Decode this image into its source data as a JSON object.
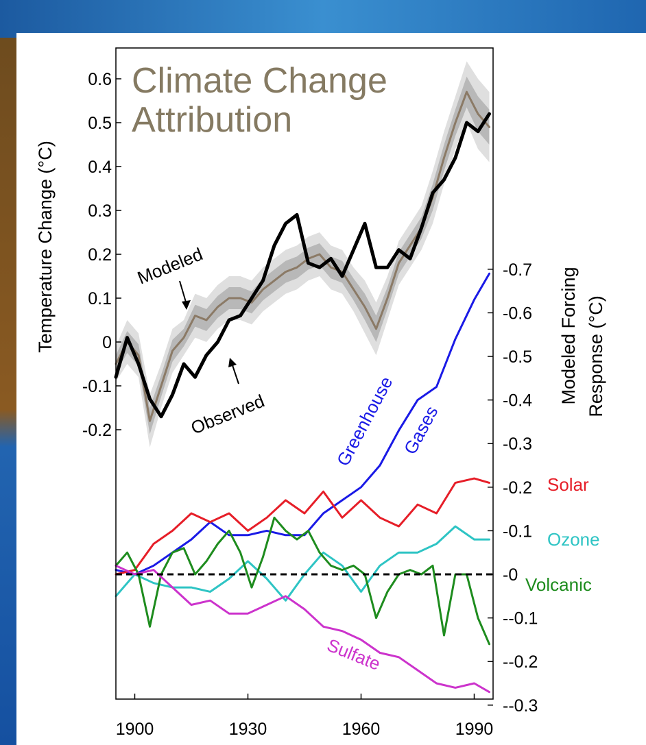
{
  "chart_data": {
    "type": "line",
    "title_lines": [
      "Climate Change",
      "Attribution"
    ],
    "title_color": "#857a62",
    "xlabel": "",
    "x_ticks": [
      1900,
      1930,
      1960,
      1990
    ],
    "xlim": [
      1895,
      1995
    ],
    "left_axis": {
      "label": "Temperature Change (°C)",
      "ticks": [
        "0.6",
        "0.5",
        "0.4",
        "0.3",
        "0.2",
        "0.1",
        "0",
        "-0.1",
        "-0.2"
      ],
      "tick_values": [
        0.6,
        0.5,
        0.4,
        0.3,
        0.2,
        0.1,
        0,
        -0.1,
        -0.2
      ],
      "ylim": [
        -0.2,
        0.6
      ]
    },
    "right_axis": {
      "label_lines": [
        "Modeled Forcing",
        "Response (°C)"
      ],
      "ticks": [
        "0.7",
        "0.6",
        "0.5",
        "0.4",
        "0.3",
        "0.2",
        "0.1",
        "0",
        "-0.1",
        "-0.2",
        "-0.3"
      ],
      "tick_values": [
        0.7,
        0.6,
        0.5,
        0.4,
        0.3,
        0.2,
        0.1,
        0,
        -0.1,
        -0.2,
        -0.3
      ],
      "ylim": [
        -0.3,
        0.7
      ]
    },
    "annotations": [
      {
        "text": "Modeled",
        "color": "#000000"
      },
      {
        "text": "Observed",
        "color": "#000000"
      },
      {
        "text": "Greenhouse",
        "color": "#1a1ae6"
      },
      {
        "text": "Gases",
        "color": "#1a1ae6"
      },
      {
        "text": "Sulfate",
        "color": "#cc33cc"
      }
    ],
    "legend": [
      {
        "text": "Solar",
        "color": "#e61e28"
      },
      {
        "text": "Ozone",
        "color": "#2ec4c4"
      },
      {
        "text": "Volcanic",
        "color": "#1e8c1e"
      }
    ],
    "series_upper": [
      {
        "name": "Modeled",
        "color": "#8b7a66",
        "x": [
          1895,
          1898,
          1901,
          1904,
          1907,
          1910,
          1913,
          1916,
          1919,
          1922,
          1925,
          1928,
          1931,
          1934,
          1937,
          1940,
          1943,
          1946,
          1949,
          1952,
          1955,
          1958,
          1961,
          1964,
          1967,
          1970,
          1973,
          1976,
          1979,
          1982,
          1985,
          1988,
          1991,
          1994
        ],
        "y": [
          -0.05,
          0.0,
          -0.03,
          -0.18,
          -0.1,
          -0.02,
          0.01,
          0.06,
          0.05,
          0.08,
          0.1,
          0.1,
          0.09,
          0.12,
          0.14,
          0.16,
          0.17,
          0.19,
          0.2,
          0.17,
          0.16,
          0.12,
          0.08,
          0.03,
          0.1,
          0.18,
          0.22,
          0.26,
          0.33,
          0.42,
          0.5,
          0.57,
          0.52,
          0.49
        ]
      },
      {
        "name": "Observed",
        "color": "#000000",
        "x": [
          1895,
          1898,
          1901,
          1904,
          1907,
          1910,
          1913,
          1916,
          1919,
          1922,
          1925,
          1928,
          1931,
          1934,
          1937,
          1940,
          1943,
          1946,
          1949,
          1952,
          1955,
          1958,
          1961,
          1964,
          1967,
          1970,
          1973,
          1976,
          1979,
          1982,
          1985,
          1988,
          1991,
          1994
        ],
        "y": [
          -0.08,
          0.01,
          -0.05,
          -0.13,
          -0.17,
          -0.12,
          -0.05,
          -0.08,
          -0.03,
          0.0,
          0.05,
          0.06,
          0.1,
          0.14,
          0.22,
          0.27,
          0.29,
          0.18,
          0.17,
          0.19,
          0.15,
          0.21,
          0.27,
          0.17,
          0.17,
          0.21,
          0.19,
          0.26,
          0.34,
          0.37,
          0.42,
          0.5,
          0.48,
          0.52
        ]
      }
    ],
    "model_band_halfwidth": [
      0.04,
      0.05,
      0.05,
      0.06,
      0.05,
      0.05,
      0.04,
      0.05,
      0.05,
      0.05,
      0.05,
      0.05,
      0.05,
      0.05,
      0.05,
      0.05,
      0.05,
      0.05,
      0.05,
      0.05,
      0.05,
      0.05,
      0.06,
      0.06,
      0.05,
      0.05,
      0.05,
      0.05,
      0.06,
      0.06,
      0.06,
      0.07,
      0.08,
      0.08
    ],
    "series_lower": [
      {
        "name": "Greenhouse Gases",
        "color": "#1a1ae6",
        "x": [
          1895,
          1900,
          1905,
          1910,
          1915,
          1920,
          1925,
          1930,
          1935,
          1940,
          1945,
          1950,
          1955,
          1960,
          1965,
          1970,
          1975,
          1980,
          1985,
          1990,
          1994
        ],
        "y": [
          0.01,
          0.0,
          0.02,
          0.05,
          0.08,
          0.12,
          0.09,
          0.09,
          0.1,
          0.09,
          0.09,
          0.14,
          0.17,
          0.2,
          0.25,
          0.33,
          0.4,
          0.43,
          0.54,
          0.63,
          0.69
        ]
      },
      {
        "name": "Solar",
        "color": "#e61e28",
        "x": [
          1895,
          1900,
          1905,
          1910,
          1915,
          1920,
          1925,
          1930,
          1935,
          1940,
          1945,
          1950,
          1955,
          1960,
          1965,
          1970,
          1975,
          1980,
          1985,
          1990,
          1994
        ],
        "y": [
          0.0,
          0.01,
          0.07,
          0.1,
          0.14,
          0.12,
          0.14,
          0.1,
          0.13,
          0.17,
          0.14,
          0.19,
          0.13,
          0.17,
          0.13,
          0.11,
          0.16,
          0.14,
          0.21,
          0.22,
          0.21
        ]
      },
      {
        "name": "Ozone",
        "color": "#2ec4c4",
        "x": [
          1895,
          1900,
          1905,
          1910,
          1915,
          1920,
          1925,
          1930,
          1935,
          1940,
          1945,
          1950,
          1955,
          1960,
          1965,
          1970,
          1975,
          1980,
          1985,
          1990,
          1994
        ],
        "y": [
          -0.05,
          0.0,
          -0.02,
          -0.03,
          -0.03,
          -0.04,
          -0.01,
          0.03,
          -0.01,
          -0.06,
          0.0,
          0.05,
          0.02,
          -0.04,
          0.02,
          0.05,
          0.05,
          0.07,
          0.11,
          0.08,
          0.08
        ]
      },
      {
        "name": "Volcanic",
        "color": "#1e8c1e",
        "x": [
          1895,
          1898,
          1901,
          1904,
          1907,
          1910,
          1913,
          1916,
          1919,
          1922,
          1925,
          1928,
          1931,
          1934,
          1937,
          1940,
          1943,
          1946,
          1949,
          1952,
          1955,
          1958,
          1961,
          1964,
          1967,
          1970,
          1973,
          1976,
          1979,
          1982,
          1985,
          1988,
          1991,
          1994
        ],
        "y": [
          0.02,
          0.05,
          0.0,
          -0.12,
          0.0,
          0.05,
          0.06,
          0.0,
          0.03,
          0.07,
          0.1,
          0.05,
          -0.03,
          0.04,
          0.13,
          0.1,
          0.08,
          0.1,
          0.05,
          0.02,
          0.01,
          0.02,
          0.0,
          -0.1,
          -0.04,
          0.0,
          0.01,
          0.0,
          0.02,
          -0.14,
          0.0,
          0.0,
          -0.1,
          -0.16
        ]
      },
      {
        "name": "Sulfate",
        "color": "#cc33cc",
        "x": [
          1895,
          1900,
          1905,
          1910,
          1915,
          1920,
          1925,
          1930,
          1935,
          1940,
          1945,
          1950,
          1955,
          1960,
          1965,
          1970,
          1975,
          1980,
          1985,
          1990,
          1994
        ],
        "y": [
          0.02,
          0.0,
          0.01,
          -0.03,
          -0.07,
          -0.06,
          -0.09,
          -0.09,
          -0.07,
          -0.05,
          -0.08,
          -0.12,
          -0.13,
          -0.15,
          -0.18,
          -0.19,
          -0.22,
          -0.25,
          -0.26,
          -0.25,
          -0.27
        ]
      }
    ],
    "zero_reference": {
      "style": "dashed",
      "color": "#000000",
      "right_axis_value": 0
    }
  }
}
